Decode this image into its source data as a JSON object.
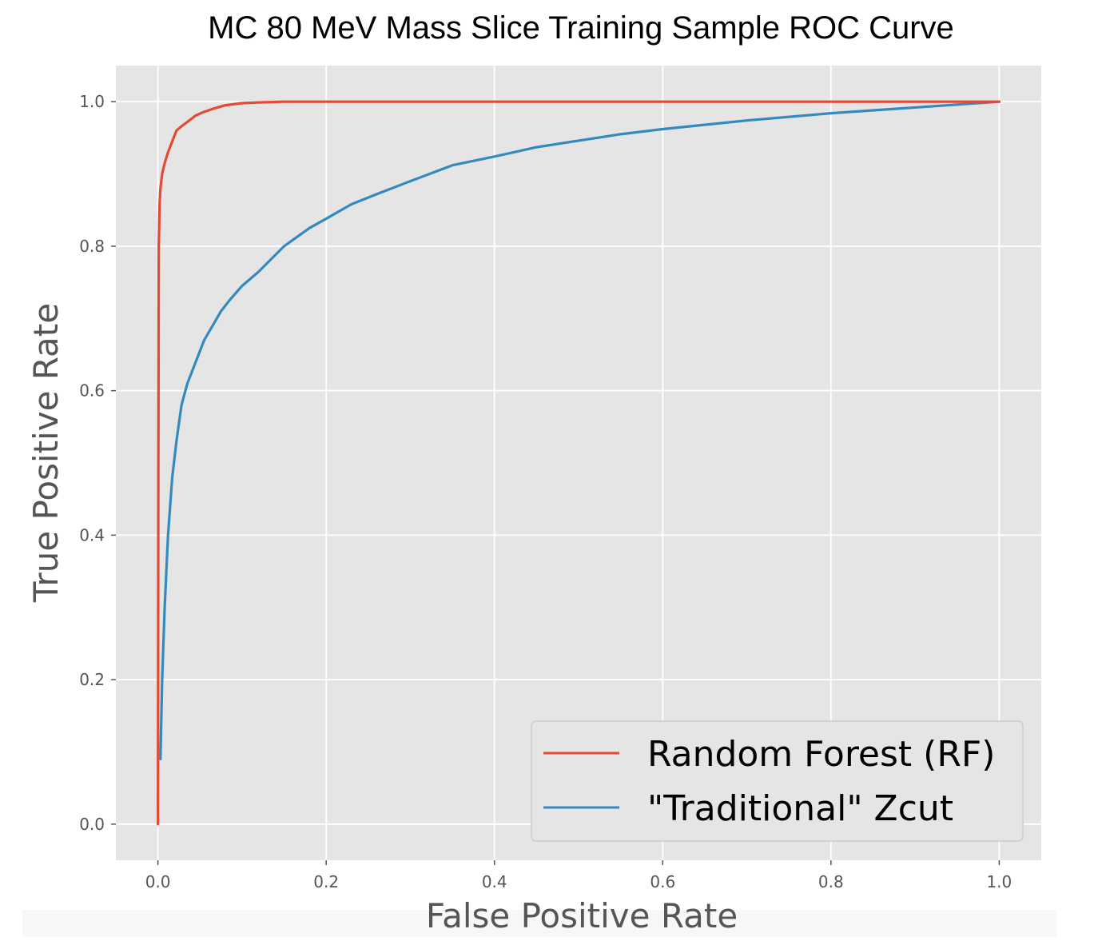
{
  "chart_data": {
    "type": "line",
    "title": "MC 80 MeV Mass Slice Training Sample ROC Curve",
    "xlabel": "False Positive Rate",
    "ylabel": "True Positive Rate",
    "xlim": [
      -0.05,
      1.05
    ],
    "ylim": [
      -0.05,
      1.05
    ],
    "xticks": [
      "0.0",
      "0.2",
      "0.4",
      "0.6",
      "0.8",
      "1.0"
    ],
    "yticks": [
      "0.0",
      "0.2",
      "0.4",
      "0.6",
      "0.8",
      "1.0"
    ],
    "xtick_values": [
      0,
      0.2,
      0.4,
      0.6,
      0.8,
      1.0
    ],
    "ytick_values": [
      0,
      0.2,
      0.4,
      0.6,
      0.8,
      1.0
    ],
    "grid": true,
    "legend_position": "bottom-right",
    "series": [
      {
        "name": "Random Forest (RF)",
        "color": "#e24a33",
        "x": [
          0.0,
          0.0005,
          0.001,
          0.002,
          0.003,
          0.005,
          0.008,
          0.012,
          0.017,
          0.022,
          0.028,
          0.035,
          0.045,
          0.055,
          0.065,
          0.08,
          0.1,
          0.12,
          0.15,
          0.2,
          0.3,
          0.5,
          0.7,
          1.0
        ],
        "y": [
          0.0,
          0.5,
          0.8,
          0.86,
          0.88,
          0.9,
          0.915,
          0.93,
          0.945,
          0.96,
          0.966,
          0.972,
          0.981,
          0.986,
          0.99,
          0.995,
          0.998,
          0.999,
          1.0,
          1.0,
          1.0,
          1.0,
          1.0,
          1.0
        ]
      },
      {
        "name": "\"Traditional\" Zcut",
        "color": "#348abd",
        "x": [
          0.003,
          0.005,
          0.008,
          0.012,
          0.017,
          0.022,
          0.028,
          0.035,
          0.045,
          0.055,
          0.065,
          0.075,
          0.085,
          0.1,
          0.12,
          0.15,
          0.18,
          0.2,
          0.23,
          0.26,
          0.3,
          0.35,
          0.4,
          0.45,
          0.5,
          0.55,
          0.6,
          0.7,
          0.8,
          0.9,
          1.0
        ],
        "y": [
          0.09,
          0.2,
          0.3,
          0.4,
          0.48,
          0.53,
          0.58,
          0.61,
          0.64,
          0.67,
          0.69,
          0.71,
          0.725,
          0.745,
          0.765,
          0.8,
          0.825,
          0.838,
          0.858,
          0.872,
          0.89,
          0.912,
          0.924,
          0.937,
          0.946,
          0.955,
          0.962,
          0.974,
          0.984,
          0.992,
          1.0
        ]
      }
    ]
  }
}
